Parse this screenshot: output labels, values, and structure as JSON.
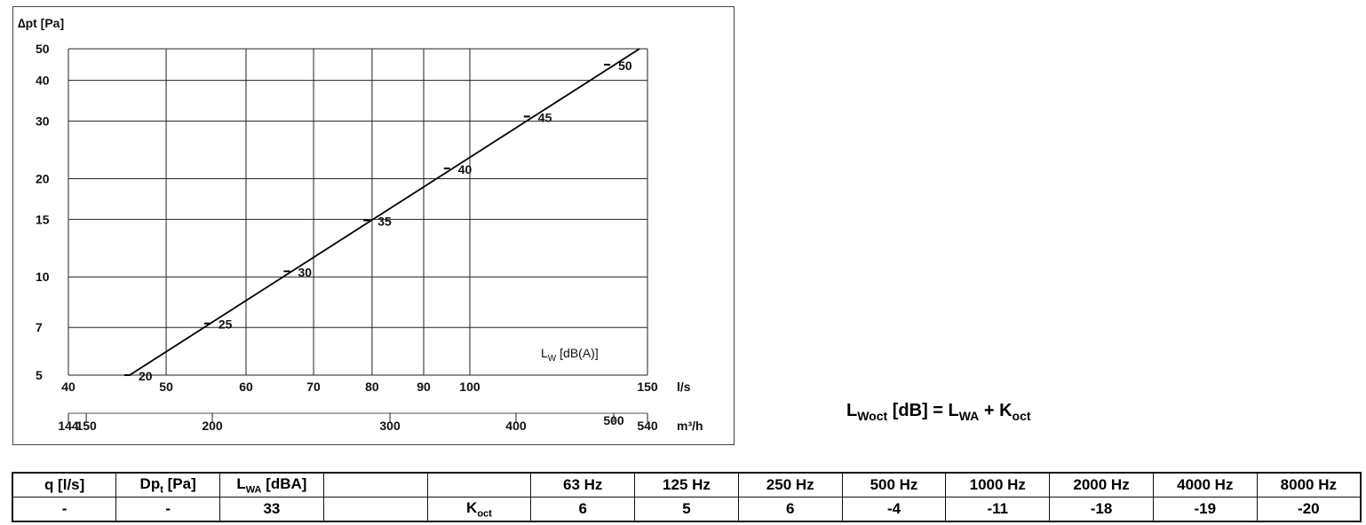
{
  "chart_data": {
    "type": "line",
    "xscale": "log",
    "yscale": "log",
    "xlabel": "l/s",
    "x2label": "m³/h",
    "ylabel": "∆pt [Pa]",
    "xlim": [
      40,
      150
    ],
    "ylim": [
      5,
      50
    ],
    "xticks": [
      40,
      50,
      60,
      70,
      80,
      90,
      100,
      150
    ],
    "x2ticks": [
      "144",
      "150",
      "200",
      "300",
      "400",
      "500",
      "540"
    ],
    "x2values": [
      144,
      150,
      200,
      300,
      400,
      500,
      540
    ],
    "yticks": [
      5,
      7,
      10,
      15,
      20,
      30,
      40,
      50
    ],
    "grid": true,
    "series_label": "L",
    "series_label_sub": "W",
    "series_label_unit": " [dB(A)]",
    "line": {
      "x": [
        46,
        147.3
      ],
      "y": [
        5,
        50
      ]
    },
    "markers": [
      {
        "label": "20",
        "x": 46,
        "y": 5
      },
      {
        "label": "25",
        "x": 55.2,
        "y": 7.2
      },
      {
        "label": "30",
        "x": 66.2,
        "y": 10.4
      },
      {
        "label": "35",
        "x": 79.4,
        "y": 14.9
      },
      {
        "label": "40",
        "x": 95.4,
        "y": 21.5
      },
      {
        "label": "45",
        "x": 114.5,
        "y": 31
      },
      {
        "label": "50",
        "x": 137.5,
        "y": 44.7
      }
    ]
  },
  "formula": {
    "l1": "L",
    "s1": "Woct",
    "t1": " [dB] = L",
    "s2": "WA",
    "t2": " + K",
    "s3": "oct"
  },
  "table": {
    "h_q": "q [l/s]",
    "h_dp": "Dp",
    "h_dp_sub": "t",
    "h_dp_unit": " [Pa]",
    "h_lwa": "L",
    "h_lwa_sub": "WA",
    "h_lwa_unit": " [dBA]",
    "q": "-",
    "dp": "-",
    "lwa": "33",
    "koct": "K",
    "koct_sub": "oct",
    "bands": [
      "63 Hz",
      "125 Hz",
      "250 Hz",
      "500 Hz",
      "1000 Hz",
      "2000 Hz",
      "4000 Hz",
      "8000 Hz"
    ],
    "values": [
      "6",
      "5",
      "6",
      "-4",
      "-11",
      "-18",
      "-19",
      "-20"
    ]
  }
}
